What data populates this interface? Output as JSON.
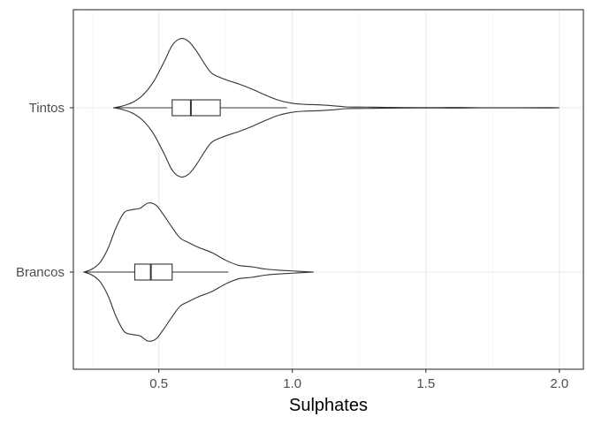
{
  "chart_data": {
    "type": "violin",
    "orientation": "horizontal",
    "xlabel": "Sulphates",
    "ylabel": "",
    "xlim": [
      0.18,
      2.09
    ],
    "x_ticks": [
      0.5,
      1.0,
      1.5,
      2.0
    ],
    "x_tick_labels": [
      "0.5",
      "1.0",
      "1.5",
      "2.0"
    ],
    "categories": [
      "Tintos",
      "Brancos"
    ],
    "grid": true,
    "groups": [
      {
        "name": "Tintos",
        "range": [
          0.33,
          2.0
        ],
        "box": {
          "q1": 0.55,
          "median": 0.62,
          "q3": 0.73,
          "whisker_low": 0.33,
          "whisker_high": 0.98
        },
        "density": [
          [
            0.33,
            0.0
          ],
          [
            0.36,
            0.02
          ],
          [
            0.4,
            0.07
          ],
          [
            0.44,
            0.17
          ],
          [
            0.48,
            0.35
          ],
          [
            0.52,
            0.62
          ],
          [
            0.55,
            0.84
          ],
          [
            0.58,
            0.93
          ],
          [
            0.61,
            0.9
          ],
          [
            0.64,
            0.77
          ],
          [
            0.67,
            0.6
          ],
          [
            0.7,
            0.46
          ],
          [
            0.75,
            0.38
          ],
          [
            0.8,
            0.32
          ],
          [
            0.85,
            0.25
          ],
          [
            0.9,
            0.17
          ],
          [
            0.95,
            0.1
          ],
          [
            1.0,
            0.06
          ],
          [
            1.05,
            0.045
          ],
          [
            1.1,
            0.04
          ],
          [
            1.15,
            0.028
          ],
          [
            1.2,
            0.012
          ],
          [
            1.25,
            0.01
          ],
          [
            1.3,
            0.008
          ],
          [
            1.35,
            0.006
          ],
          [
            1.4,
            0.004
          ],
          [
            1.5,
            0.002
          ],
          [
            1.6,
            0.004
          ],
          [
            1.7,
            0.001
          ],
          [
            1.85,
            0.001
          ],
          [
            1.95,
            0.002
          ],
          [
            2.0,
            0.0
          ]
        ]
      },
      {
        "name": "Brancos",
        "range": [
          0.22,
          1.08
        ],
        "box": {
          "q1": 0.41,
          "median": 0.47,
          "q3": 0.55,
          "whisker_low": 0.22,
          "whisker_high": 0.76
        },
        "density": [
          [
            0.22,
            0.0
          ],
          [
            0.25,
            0.04
          ],
          [
            0.28,
            0.13
          ],
          [
            0.31,
            0.32
          ],
          [
            0.34,
            0.6
          ],
          [
            0.37,
            0.8
          ],
          [
            0.4,
            0.84
          ],
          [
            0.43,
            0.86
          ],
          [
            0.46,
            0.93
          ],
          [
            0.49,
            0.9
          ],
          [
            0.52,
            0.76
          ],
          [
            0.55,
            0.6
          ],
          [
            0.58,
            0.46
          ],
          [
            0.61,
            0.4
          ],
          [
            0.65,
            0.33
          ],
          [
            0.7,
            0.26
          ],
          [
            0.75,
            0.16
          ],
          [
            0.8,
            0.09
          ],
          [
            0.85,
            0.07
          ],
          [
            0.9,
            0.04
          ],
          [
            0.95,
            0.025
          ],
          [
            1.0,
            0.015
          ],
          [
            1.05,
            0.005
          ],
          [
            1.08,
            0.0
          ]
        ]
      }
    ]
  }
}
